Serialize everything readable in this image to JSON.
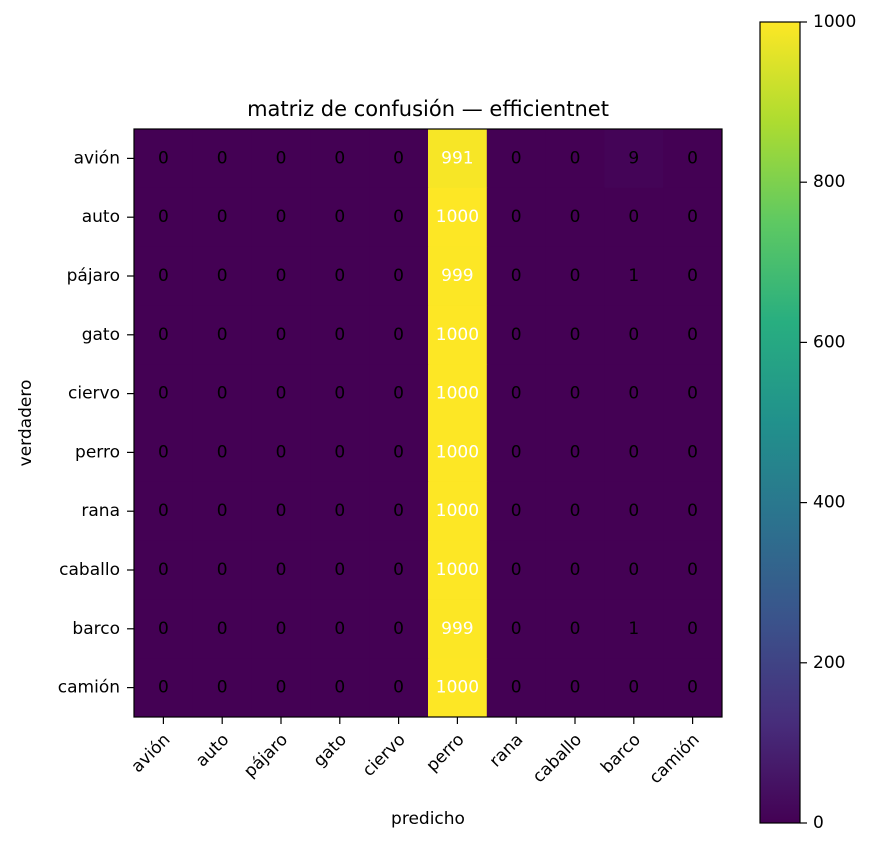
{
  "chart_data": {
    "type": "heatmap",
    "title": "matriz de confusión — efficientnet",
    "xlabel": "predicho",
    "ylabel": "verdadero",
    "x_categories": [
      "avión",
      "auto",
      "pájaro",
      "gato",
      "ciervo",
      "perro",
      "rana",
      "caballo",
      "barco",
      "camión"
    ],
    "y_categories": [
      "avión",
      "auto",
      "pájaro",
      "gato",
      "ciervo",
      "perro",
      "rana",
      "caballo",
      "barco",
      "camión"
    ],
    "values": [
      [
        0,
        0,
        0,
        0,
        0,
        991,
        0,
        0,
        9,
        0
      ],
      [
        0,
        0,
        0,
        0,
        0,
        1000,
        0,
        0,
        0,
        0
      ],
      [
        0,
        0,
        0,
        0,
        0,
        999,
        0,
        0,
        1,
        0
      ],
      [
        0,
        0,
        0,
        0,
        0,
        1000,
        0,
        0,
        0,
        0
      ],
      [
        0,
        0,
        0,
        0,
        0,
        1000,
        0,
        0,
        0,
        0
      ],
      [
        0,
        0,
        0,
        0,
        0,
        1000,
        0,
        0,
        0,
        0
      ],
      [
        0,
        0,
        0,
        0,
        0,
        1000,
        0,
        0,
        0,
        0
      ],
      [
        0,
        0,
        0,
        0,
        0,
        1000,
        0,
        0,
        0,
        0
      ],
      [
        0,
        0,
        0,
        0,
        0,
        999,
        0,
        0,
        1,
        0
      ],
      [
        0,
        0,
        0,
        0,
        0,
        1000,
        0,
        0,
        0,
        0
      ]
    ],
    "colorscale": "viridis",
    "colorbar": {
      "range": [
        0,
        1000
      ],
      "ticks": [
        0,
        200,
        400,
        600,
        800,
        1000
      ]
    }
  }
}
